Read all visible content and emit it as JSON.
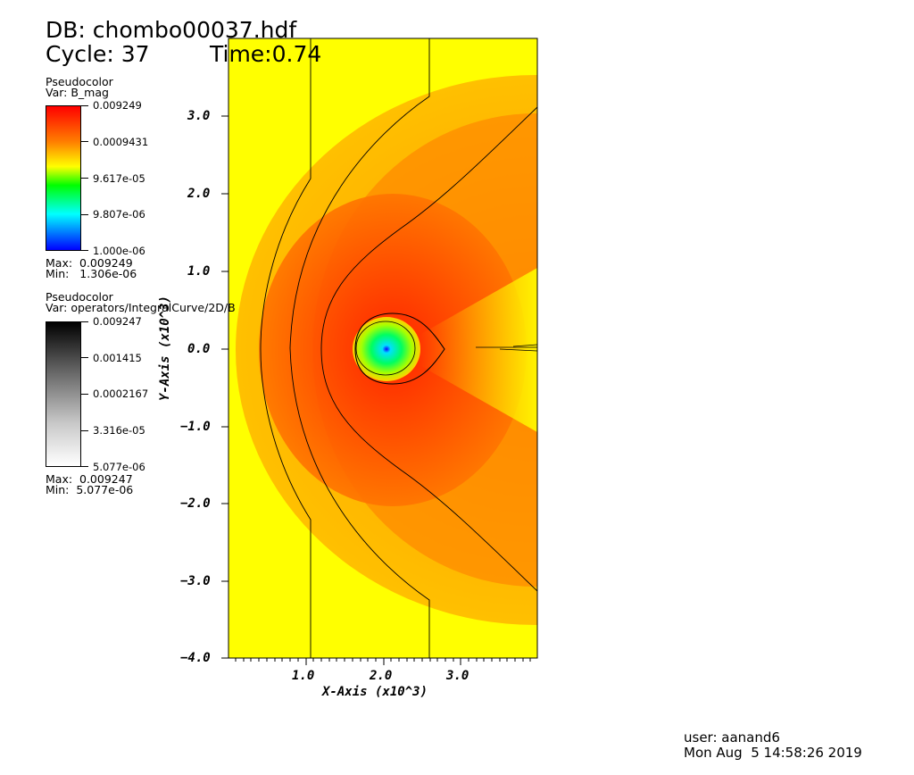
{
  "header": {
    "db": "DB: chombo00037.hdf",
    "cycle": "Cycle: 37",
    "time": "Time:0.74"
  },
  "legend1": {
    "plot_type": "Pseudocolor",
    "var": "Var: B_mag",
    "ticks": [
      "0.009249",
      "0.0009431",
      "9.617e-05",
      "9.807e-06",
      "1.000e-06"
    ],
    "max": "Max:  0.009249",
    "min": "Min:   1.306e-06",
    "colors": [
      "#ff0000",
      "#ff8000",
      "#ffff00",
      "#00ff00",
      "#00ffff",
      "#0000ff"
    ]
  },
  "legend2": {
    "plot_type": "Pseudocolor",
    "var": "Var: operators/IntegralCurve/2D/B",
    "ticks": [
      "0.009247",
      "0.001415",
      "0.0002167",
      "3.316e-05",
      "5.077e-06"
    ],
    "max": "Max:  0.009247",
    "min": "Min:  5.077e-06",
    "colors": [
      "#000000",
      "#ffffff"
    ]
  },
  "axes": {
    "x_title": "X-Axis (x10^3)",
    "y_title": "Y-Axis (x10^3)",
    "x_ticks": [
      "1.0",
      "2.0",
      "3.0"
    ],
    "y_ticks": [
      "3.0",
      "2.0",
      "1.0",
      "0.0",
      "−1.0",
      "−2.0",
      "−3.0",
      "−4.0"
    ]
  },
  "plot_colors": {
    "background": "#ffff00",
    "field_outer": "#ffc400",
    "field_mid": "#ff8c00",
    "field_inner": "#ff4000",
    "core": "#00e87c"
  },
  "footer": {
    "user": "user: aanand6",
    "date": "Mon Aug  5 14:58:26 2019"
  }
}
